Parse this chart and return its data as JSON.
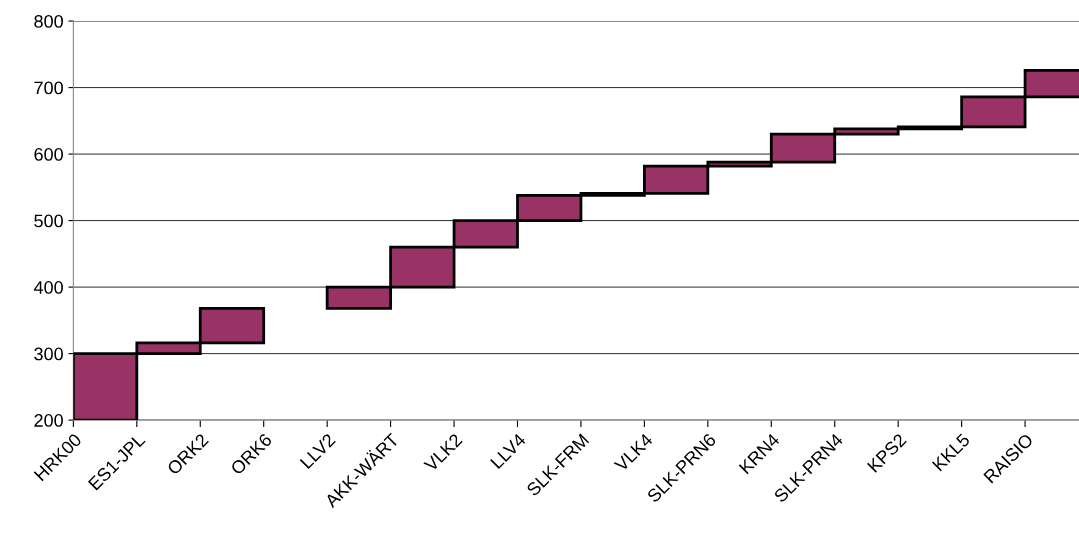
{
  "chart_data": {
    "type": "bar",
    "categories": [
      "HRK00",
      "ES1-JPL",
      "ORK2",
      "ORK6",
      "LLV2",
      "AKK-WÄRT",
      "VLK2",
      "LLV4",
      "SLK-FRM",
      "VLK4",
      "SLK-PRN6",
      "KRN4",
      "SLK-PRN4",
      "KPS2",
      "KKL5",
      "RAISIO"
    ],
    "base": [
      200,
      300,
      316,
      null,
      368,
      400,
      460,
      500,
      538,
      541,
      582,
      588,
      630,
      638,
      641,
      686
    ],
    "values": [
      100,
      16,
      52,
      null,
      32,
      60,
      40,
      38,
      3,
      41,
      6,
      42,
      8,
      3,
      45,
      40
    ],
    "color": "#993366",
    "ylim": [
      200,
      800
    ],
    "yticks": [
      200,
      300,
      400,
      500,
      600,
      700,
      800
    ],
    "grid": "y"
  }
}
